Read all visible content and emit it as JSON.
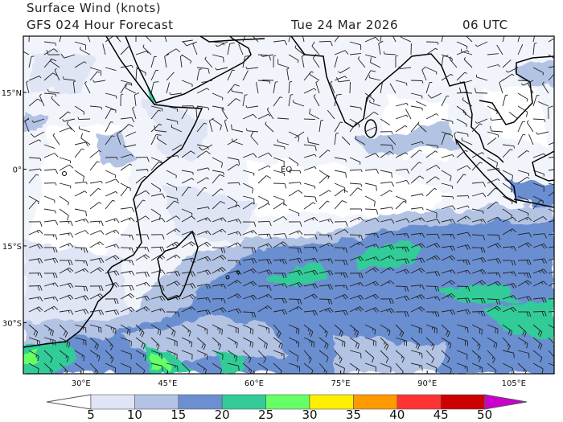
{
  "header": {
    "title": "Surface Wind (knots)",
    "subtitle": "GFS 024 Hour Forecast",
    "date": "Tue 24 Mar 2026",
    "time": "06 UTC"
  },
  "map": {
    "region": "Indian Ocean",
    "lon_range_deg": [
      20,
      112
    ],
    "lat_range_deg": [
      -40,
      26
    ],
    "lon_ticks": [
      {
        "value": 30,
        "label": "30°E"
      },
      {
        "value": 45,
        "label": "45°E"
      },
      {
        "value": 60,
        "label": "60°E"
      },
      {
        "value": 75,
        "label": "75°E"
      },
      {
        "value": 90,
        "label": "90°E"
      },
      {
        "value": 105,
        "label": "105°E"
      }
    ],
    "lat_ticks": [
      {
        "value": 15,
        "label": "15°N"
      },
      {
        "value": 0,
        "label": "0°"
      },
      {
        "value": -15,
        "label": "15°S"
      },
      {
        "value": -30,
        "label": "30°S"
      }
    ],
    "equator_label": "EQ",
    "coastline_color": "#000000",
    "barb_color": "#222222"
  },
  "colorbar": {
    "units": "knots",
    "labels": [
      "5",
      "10",
      "15",
      "20",
      "25",
      "30",
      "35",
      "40",
      "45",
      "50"
    ],
    "colors": [
      "#ffffff",
      "#dfe5f5",
      "#b3c3e3",
      "#6b8fd1",
      "#33cc99",
      "#66ff66",
      "#ffee00",
      "#ff9900",
      "#ff3333",
      "#cc0000",
      "#cc00cc"
    ]
  }
}
